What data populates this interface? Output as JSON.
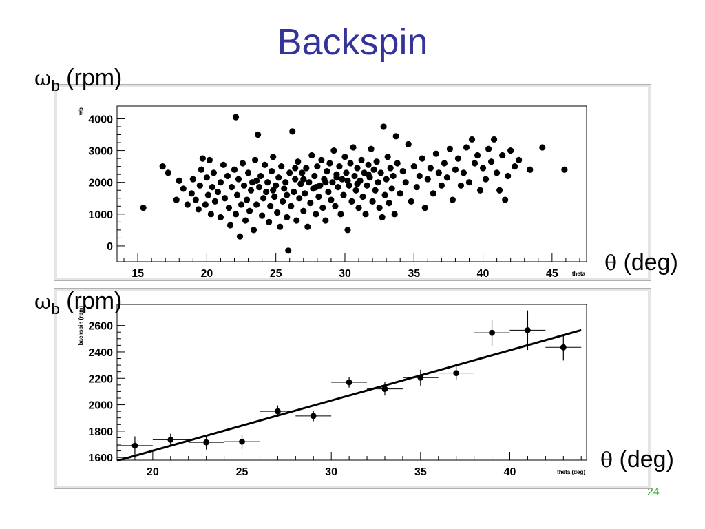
{
  "slide": {
    "title": "Backspin",
    "page_number": "24"
  },
  "labels": {
    "top_y": {
      "symbol": "ω",
      "sub": "b",
      "unit": "(rpm)"
    },
    "top_x": {
      "symbol": "θ",
      "unit": "(deg)"
    },
    "bottom_y": {
      "symbol": "ω",
      "sub": "b",
      "unit": "(rpm)"
    },
    "bottom_x": {
      "symbol": "θ",
      "unit": "(deg)"
    }
  },
  "colors": {
    "title": "#333399",
    "page_number": "#33aa33",
    "panel": "#e4e4e4",
    "marker": "#000000"
  },
  "chart_data": [
    {
      "type": "scatter",
      "xlabel": "theta",
      "ylabel": "wb",
      "xlim": [
        13.5,
        47.5
      ],
      "ylim": [
        -500,
        4400
      ],
      "x_ticks": [
        15,
        20,
        25,
        30,
        35,
        40,
        45
      ],
      "y_ticks": [
        0,
        1000,
        2000,
        3000,
        4000
      ],
      "grid": false,
      "points": [
        [
          15.4,
          1200
        ],
        [
          16.8,
          2500
        ],
        [
          17.2,
          2300
        ],
        [
          17.8,
          1450
        ],
        [
          18.0,
          2050
        ],
        [
          18.3,
          1800
        ],
        [
          18.6,
          1300
        ],
        [
          18.9,
          1650
        ],
        [
          19.0,
          2100
        ],
        [
          19.2,
          1450
        ],
        [
          19.4,
          1150
        ],
        [
          19.5,
          1900
        ],
        [
          19.6,
          2400
        ],
        [
          19.7,
          2750
        ],
        [
          19.9,
          1300
        ],
        [
          20.0,
          2150
        ],
        [
          20.1,
          1600
        ],
        [
          20.2,
          2700
        ],
        [
          20.3,
          1000
        ],
        [
          20.4,
          1850
        ],
        [
          20.5,
          2300
        ],
        [
          20.6,
          1400
        ],
        [
          20.8,
          1700
        ],
        [
          21.0,
          2000
        ],
        [
          21.0,
          900
        ],
        [
          21.2,
          2550
        ],
        [
          21.3,
          1500
        ],
        [
          21.5,
          2200
        ],
        [
          21.6,
          1200
        ],
        [
          21.7,
          650
        ],
        [
          21.8,
          1850
        ],
        [
          22.0,
          2400
        ],
        [
          22.1,
          1000
        ],
        [
          22.1,
          4050
        ],
        [
          22.2,
          1600
        ],
        [
          22.3,
          2100
        ],
        [
          22.4,
          300
        ],
        [
          22.5,
          1300
        ],
        [
          22.6,
          2600
        ],
        [
          22.7,
          1900
        ],
        [
          22.8,
          800
        ],
        [
          22.9,
          1450
        ],
        [
          23.0,
          2300
        ],
        [
          23.1,
          1100
        ],
        [
          23.2,
          1750
        ],
        [
          23.3,
          2000
        ],
        [
          23.4,
          500
        ],
        [
          23.5,
          2700
        ],
        [
          23.6,
          1300
        ],
        [
          23.7,
          3500
        ],
        [
          23.8,
          1850
        ],
        [
          23.9,
          2200
        ],
        [
          24.0,
          950
        ],
        [
          24.1,
          1500
        ],
        [
          24.2,
          2550
        ],
        [
          24.3,
          1700
        ],
        [
          24.4,
          2000
        ],
        [
          24.5,
          750
        ],
        [
          24.6,
          1250
        ],
        [
          24.7,
          2350
        ],
        [
          24.8,
          2800
        ],
        [
          24.9,
          1550
        ],
        [
          25.0,
          1900
        ],
        [
          25.1,
          1050
        ],
        [
          25.2,
          2150
        ],
        [
          25.3,
          600
        ],
        [
          25.4,
          2500
        ],
        [
          25.5,
          1400
        ],
        [
          25.6,
          1800
        ],
        [
          25.7,
          2000
        ],
        [
          25.8,
          900
        ],
        [
          25.9,
          -150
        ],
        [
          26.0,
          2300
        ],
        [
          26.1,
          1250
        ],
        [
          26.2,
          3600
        ],
        [
          26.3,
          1700
        ],
        [
          26.4,
          2100
        ],
        [
          26.5,
          800
        ],
        [
          26.6,
          2650
        ],
        [
          26.7,
          1500
        ],
        [
          26.8,
          1950
        ],
        [
          26.9,
          2300
        ],
        [
          27.0,
          1100
        ],
        [
          27.1,
          1650
        ],
        [
          27.2,
          2450
        ],
        [
          27.3,
          600
        ],
        [
          27.4,
          2000
        ],
        [
          27.5,
          1350
        ],
        [
          27.6,
          2850
        ],
        [
          27.7,
          1800
        ],
        [
          27.8,
          2200
        ],
        [
          27.9,
          1000
        ],
        [
          28.0,
          2500
        ],
        [
          28.1,
          1550
        ],
        [
          28.2,
          1900
        ],
        [
          28.3,
          2700
        ],
        [
          28.4,
          1200
        ],
        [
          28.5,
          2100
        ],
        [
          28.6,
          800
        ],
        [
          28.7,
          2350
        ],
        [
          28.8,
          1700
        ],
        [
          28.9,
          2600
        ],
        [
          29.0,
          1450
        ],
        [
          29.1,
          2000
        ],
        [
          29.2,
          3000
        ],
        [
          29.3,
          1250
        ],
        [
          29.4,
          2250
        ],
        [
          29.5,
          1850
        ],
        [
          29.6,
          2500
        ],
        [
          29.7,
          1000
        ],
        [
          29.8,
          2100
        ],
        [
          29.9,
          1600
        ],
        [
          30.0,
          2800
        ],
        [
          30.1,
          2300
        ],
        [
          30.2,
          500
        ],
        [
          30.3,
          1900
        ],
        [
          30.4,
          2600
        ],
        [
          30.5,
          1400
        ],
        [
          30.6,
          3100
        ],
        [
          30.7,
          2200
        ],
        [
          30.8,
          1750
        ],
        [
          30.9,
          2450
        ],
        [
          31.0,
          1200
        ],
        [
          31.1,
          2050
        ],
        [
          31.2,
          2700
        ],
        [
          31.3,
          1550
        ],
        [
          31.4,
          2300
        ],
        [
          31.5,
          1000
        ],
        [
          31.6,
          1900
        ],
        [
          31.7,
          2550
        ],
        [
          31.8,
          2150
        ],
        [
          31.9,
          3050
        ],
        [
          32.0,
          1400
        ],
        [
          32.1,
          2400
        ],
        [
          32.2,
          1750
        ],
        [
          32.3,
          2650
        ],
        [
          32.4,
          2000
        ],
        [
          32.5,
          1200
        ],
        [
          32.6,
          2300
        ],
        [
          32.7,
          900
        ],
        [
          32.8,
          3750
        ],
        [
          32.9,
          1600
        ],
        [
          33.0,
          2100
        ],
        [
          33.1,
          2800
        ],
        [
          33.2,
          1350
        ],
        [
          33.3,
          2450
        ],
        [
          33.4,
          1800
        ],
        [
          33.5,
          2200
        ],
        [
          33.6,
          1000
        ],
        [
          33.7,
          3450
        ],
        [
          33.8,
          2600
        ],
        [
          34.0,
          1650
        ],
        [
          34.2,
          2350
        ],
        [
          34.4,
          2000
        ],
        [
          34.6,
          3200
        ],
        [
          34.8,
          1400
        ],
        [
          35.0,
          2500
        ],
        [
          35.2,
          1850
        ],
        [
          35.4,
          2200
        ],
        [
          35.6,
          2750
        ],
        [
          35.8,
          1200
        ],
        [
          36.0,
          2100
        ],
        [
          36.2,
          2450
        ],
        [
          36.4,
          1650
        ],
        [
          36.6,
          2900
        ],
        [
          36.8,
          2300
        ],
        [
          37.0,
          1900
        ],
        [
          37.2,
          2600
        ],
        [
          37.4,
          2150
        ],
        [
          37.6,
          3050
        ],
        [
          37.8,
          1450
        ],
        [
          38.0,
          2400
        ],
        [
          38.2,
          2750
        ],
        [
          38.4,
          1900
        ],
        [
          38.6,
          2300
        ],
        [
          38.8,
          3100
        ],
        [
          39.0,
          2000
        ],
        [
          39.2,
          3350
        ],
        [
          39.4,
          2600
        ],
        [
          39.6,
          2850
        ],
        [
          39.8,
          1750
        ],
        [
          40.0,
          2450
        ],
        [
          40.2,
          2100
        ],
        [
          40.4,
          3050
        ],
        [
          40.6,
          2650
        ],
        [
          40.8,
          3350
        ],
        [
          41.0,
          2300
        ],
        [
          41.2,
          1750
        ],
        [
          41.4,
          2850
        ],
        [
          41.6,
          1450
        ],
        [
          41.8,
          2200
        ],
        [
          42.0,
          3000
        ],
        [
          42.3,
          2500
        ],
        [
          42.6,
          2700
        ],
        [
          43.4,
          2400
        ],
        [
          44.3,
          3100
        ],
        [
          45.9,
          2400
        ],
        [
          23.6,
          2050
        ],
        [
          24.8,
          1750
        ],
        [
          26.4,
          2450
        ],
        [
          27.9,
          1850
        ],
        [
          29.4,
          2150
        ],
        [
          30.9,
          1950
        ],
        [
          31.7,
          2250
        ],
        [
          28.6,
          2000
        ],
        [
          27.0,
          2100
        ],
        [
          25.8,
          1600
        ],
        [
          30.2,
          2050
        ]
      ]
    },
    {
      "type": "scatter",
      "xlabel": "theta (deg)",
      "ylabel": "backspin (rpm)",
      "xlim": [
        18,
        44.3
      ],
      "ylim": [
        1580,
        2760
      ],
      "x_ticks": [
        20,
        25,
        30,
        35,
        40
      ],
      "y_ticks": [
        1600,
        1800,
        2000,
        2200,
        2400,
        2600
      ],
      "grid": false,
      "points": [
        {
          "x": 19,
          "y": 1690,
          "xerr": 1,
          "yerr": 70
        },
        {
          "x": 21,
          "y": 1735,
          "xerr": 1,
          "yerr": 45
        },
        {
          "x": 23,
          "y": 1715,
          "xerr": 1,
          "yerr": 55
        },
        {
          "x": 25,
          "y": 1720,
          "xerr": 1,
          "yerr": 55
        },
        {
          "x": 27,
          "y": 1950,
          "xerr": 1,
          "yerr": 45
        },
        {
          "x": 29,
          "y": 1915,
          "xerr": 1,
          "yerr": 40
        },
        {
          "x": 31,
          "y": 2170,
          "xerr": 1,
          "yerr": 40
        },
        {
          "x": 33,
          "y": 2120,
          "xerr": 1,
          "yerr": 50
        },
        {
          "x": 35,
          "y": 2205,
          "xerr": 1,
          "yerr": 60
        },
        {
          "x": 37,
          "y": 2240,
          "xerr": 1,
          "yerr": 55
        },
        {
          "x": 39,
          "y": 2545,
          "xerr": 1,
          "yerr": 100
        },
        {
          "x": 41,
          "y": 2565,
          "xerr": 1,
          "yerr": 150
        },
        {
          "x": 43,
          "y": 2435,
          "xerr": 1,
          "yerr": 100
        }
      ],
      "fit_line": {
        "x": [
          18,
          44
        ],
        "y": [
          1575,
          2565
        ]
      }
    }
  ]
}
